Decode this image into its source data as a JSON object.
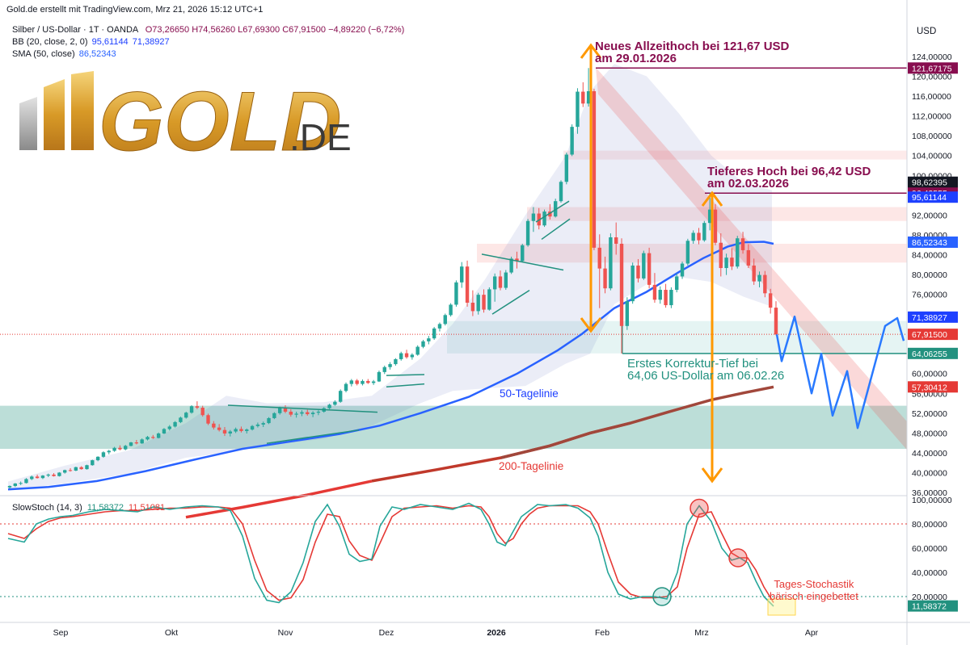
{
  "header": {
    "source_line": "Gold.de erstellt mit TradingView.com, Mrz 21, 2026 15:12 UTC+1",
    "symbol": "Silber / US-Dollar · 1T · OANDA",
    "ohlc": {
      "o": "O73,26650",
      "h": "H74,56260",
      "l": "L67,69300",
      "c": "C67,91500",
      "chg": "−4,89220 (−6,72%)"
    },
    "bb_label": "BB (20, close, 2, 0)",
    "bb_values": [
      "95,61144",
      "71,38927"
    ],
    "sma_label": "SMA (50, close)",
    "sma_value": "86,52343",
    "currency": "USD"
  },
  "logo": {
    "text": "GOLD",
    "suffix": ".DE"
  },
  "colors": {
    "up": "#26a69a",
    "down": "#ef5350",
    "sma50": "#2962ff",
    "sma200": "#e53935",
    "orange": "#ff9800",
    "purple": "#880e4f",
    "teal": "#22917f",
    "forecast": "#2979ff"
  },
  "price_axis": {
    "ticks": [
      "124,00000",
      "120,00000",
      "116,00000",
      "112,00000",
      "108,00000",
      "104,00000",
      "100,00000",
      "96,00000",
      "92,00000",
      "88,00000",
      "84,00000",
      "80,00000",
      "76,00000",
      "72,00000",
      "68,00000",
      "64,00000",
      "60,00000",
      "56,00000",
      "52,00000",
      "48,00000",
      "44,00000",
      "40,00000",
      "36,00000"
    ],
    "badges": [
      {
        "label": "121,67175",
        "value": 121.67,
        "bg": "#880e4f",
        "fg": "#ffffff"
      },
      {
        "label": "98,62395",
        "value": 98.62,
        "bg": "#131722",
        "fg": "#ffffff"
      },
      {
        "label": "96,42555",
        "value": 96.42,
        "bg": "#880e4f",
        "fg": "#ffffff"
      },
      {
        "label": "95,61144",
        "value": 95.61,
        "bg": "#1e40ff",
        "fg": "#ffffff"
      },
      {
        "label": "86,52343",
        "value": 86.52,
        "bg": "#2962ff",
        "fg": "#ffffff"
      },
      {
        "label": "71,38927",
        "value": 71.39,
        "bg": "#1e40ff",
        "fg": "#ffffff"
      },
      {
        "label": "67,91500",
        "value": 67.92,
        "bg": "#e53935",
        "fg": "#ffffff"
      },
      {
        "label": "64,06255",
        "value": 64.06,
        "bg": "#22917f",
        "fg": "#ffffff"
      },
      {
        "label": "57,30412",
        "value": 57.3,
        "bg": "#e53935",
        "fg": "#ffffff"
      }
    ]
  },
  "time_axis": {
    "labels": [
      "Sep",
      "Okt",
      "Nov",
      "Dez",
      "2026",
      "Feb",
      "Mrz",
      "Apr"
    ],
    "bold": "2026"
  },
  "annotations": {
    "ath_line1": "Neues Allzeithoch bei 121,67 USD",
    "ath_line2": "am 29.01.2026",
    "lower_high_line1": "Tieferes Hoch bei 96,42 USD",
    "lower_high_line2": "am 02.03.2026",
    "correction_line1": "Erstes Korrektur-Tief bei",
    "correction_line2": "64,06 US-Dollar am 06.02.26",
    "sma50_label": "50-Tagelinie",
    "sma200_label": "200-Tagelinie",
    "stoch_note_line1": "Tages-Stochastik",
    "stoch_note_line2": "bärisch eingebettet"
  },
  "stoch": {
    "label": "SlowStoch (14, 3)",
    "k_value": "11,58372",
    "d_value": "11,51081",
    "axis_ticks": [
      "100,00000",
      "80,00000",
      "60,00000",
      "40,00000",
      "20,00000"
    ],
    "badge": "11,58372",
    "levels": [
      80,
      20
    ]
  },
  "chart_data": {
    "type": "candlestick",
    "title": "Silber / US-Dollar · 1T · OANDA",
    "ylim": [
      36,
      126
    ],
    "candles": [
      [
        37.0,
        37.4,
        36.8,
        37.3
      ],
      [
        37.3,
        37.9,
        37.1,
        37.8
      ],
      [
        37.8,
        38.2,
        37.5,
        37.9
      ],
      [
        37.9,
        38.9,
        37.8,
        38.7
      ],
      [
        38.7,
        39.4,
        38.5,
        39.2
      ],
      [
        39.2,
        39.6,
        38.8,
        38.9
      ],
      [
        38.9,
        39.5,
        38.7,
        39.4
      ],
      [
        39.4,
        39.8,
        39.1,
        39.6
      ],
      [
        39.6,
        39.9,
        39.2,
        39.3
      ],
      [
        39.3,
        40.1,
        39.2,
        40.0
      ],
      [
        40.0,
        40.6,
        39.8,
        40.5
      ],
      [
        40.5,
        40.9,
        40.2,
        40.4
      ],
      [
        40.4,
        41.2,
        40.3,
        41.1
      ],
      [
        41.1,
        41.3,
        40.6,
        40.7
      ],
      [
        40.7,
        41.6,
        40.6,
        41.5
      ],
      [
        41.5,
        42.6,
        41.4,
        42.5
      ],
      [
        42.5,
        43.3,
        42.3,
        43.2
      ],
      [
        43.2,
        44.3,
        43.0,
        44.1
      ],
      [
        44.1,
        44.6,
        43.7,
        44.4
      ],
      [
        44.4,
        45.2,
        44.2,
        45.0
      ],
      [
        45.0,
        45.5,
        44.5,
        44.7
      ],
      [
        44.7,
        45.6,
        44.5,
        45.4
      ],
      [
        45.4,
        46.2,
        45.3,
        46.1
      ],
      [
        46.1,
        46.6,
        45.7,
        45.9
      ],
      [
        45.9,
        46.9,
        45.8,
        46.7
      ],
      [
        46.7,
        47.4,
        46.5,
        47.2
      ],
      [
        47.2,
        47.6,
        46.8,
        47.0
      ],
      [
        47.0,
        48.1,
        46.9,
        47.9
      ],
      [
        47.9,
        49.0,
        47.8,
        48.8
      ],
      [
        48.8,
        49.6,
        48.5,
        49.3
      ],
      [
        49.3,
        50.4,
        49.1,
        50.2
      ],
      [
        50.2,
        51.3,
        50.0,
        51.1
      ],
      [
        51.1,
        52.3,
        50.9,
        52.1
      ],
      [
        52.1,
        53.6,
        51.9,
        53.4
      ],
      [
        53.4,
        54.4,
        52.8,
        53.1
      ],
      [
        53.1,
        53.5,
        51.3,
        51.6
      ],
      [
        51.6,
        51.9,
        49.6,
        49.9
      ],
      [
        49.9,
        50.4,
        48.7,
        49.1
      ],
      [
        49.1,
        49.8,
        48.3,
        48.6
      ],
      [
        48.6,
        49.2,
        47.4,
        47.9
      ],
      [
        47.9,
        48.6,
        47.3,
        48.3
      ],
      [
        48.3,
        49.1,
        48.0,
        48.8
      ],
      [
        48.8,
        49.3,
        48.1,
        48.4
      ],
      [
        48.4,
        48.9,
        47.9,
        48.7
      ],
      [
        48.7,
        49.6,
        48.5,
        49.4
      ],
      [
        49.4,
        50.1,
        49.1,
        49.7
      ],
      [
        49.7,
        50.3,
        49.2,
        50.0
      ],
      [
        50.0,
        51.2,
        49.8,
        51.0
      ],
      [
        51.0,
        52.2,
        50.8,
        52.0
      ],
      [
        52.0,
        53.3,
        51.7,
        53.1
      ],
      [
        53.1,
        53.6,
        52.0,
        52.3
      ],
      [
        52.3,
        52.8,
        51.3,
        51.7
      ],
      [
        51.7,
        52.3,
        51.1,
        51.9
      ],
      [
        51.9,
        52.6,
        51.4,
        52.2
      ],
      [
        52.2,
        52.7,
        51.5,
        51.8
      ],
      [
        51.8,
        52.4,
        51.2,
        52.1
      ],
      [
        52.1,
        52.6,
        51.6,
        52.3
      ],
      [
        52.3,
        53.2,
        52.1,
        53.0
      ],
      [
        53.0,
        53.9,
        52.8,
        53.7
      ],
      [
        53.7,
        54.6,
        53.5,
        54.3
      ],
      [
        54.3,
        56.8,
        54.1,
        56.5
      ],
      [
        56.5,
        58.2,
        56.2,
        57.9
      ],
      [
        57.9,
        58.9,
        57.4,
        58.6
      ],
      [
        58.6,
        58.9,
        57.6,
        57.9
      ],
      [
        57.9,
        58.8,
        57.6,
        58.5
      ],
      [
        58.5,
        58.9,
        57.9,
        58.1
      ],
      [
        58.1,
        58.7,
        57.7,
        58.4
      ],
      [
        58.4,
        60.6,
        58.3,
        60.3
      ],
      [
        60.3,
        61.6,
        59.9,
        61.3
      ],
      [
        61.3,
        62.3,
        60.8,
        61.9
      ],
      [
        61.9,
        63.1,
        61.6,
        62.9
      ],
      [
        62.9,
        64.4,
        62.6,
        64.1
      ],
      [
        64.1,
        64.8,
        63.0,
        63.3
      ],
      [
        63.3,
        64.1,
        62.8,
        63.8
      ],
      [
        63.8,
        65.7,
        63.6,
        65.4
      ],
      [
        65.4,
        66.8,
        65.1,
        66.5
      ],
      [
        66.5,
        67.6,
        65.9,
        67.1
      ],
      [
        67.1,
        69.4,
        66.8,
        69.1
      ],
      [
        69.1,
        70.3,
        68.5,
        70.0
      ],
      [
        70.0,
        72.1,
        69.7,
        71.8
      ],
      [
        71.8,
        74.2,
        71.5,
        73.9
      ],
      [
        73.9,
        78.8,
        73.5,
        78.4
      ],
      [
        78.4,
        82.5,
        77.3,
        81.6
      ],
      [
        81.6,
        82.8,
        73.5,
        74.3
      ],
      [
        74.3,
        76.8,
        71.6,
        72.6
      ],
      [
        72.6,
        76.3,
        71.9,
        75.9
      ],
      [
        75.9,
        77.0,
        72.3,
        72.9
      ],
      [
        72.9,
        77.4,
        72.7,
        77.0
      ],
      [
        77.0,
        80.2,
        74.5,
        79.6
      ],
      [
        79.6,
        80.8,
        76.8,
        77.3
      ],
      [
        77.3,
        80.9,
        76.9,
        80.4
      ],
      [
        80.4,
        83.6,
        80.1,
        83.2
      ],
      [
        83.2,
        84.6,
        81.2,
        82.7
      ],
      [
        82.7,
        86.2,
        82.5,
        85.9
      ],
      [
        85.9,
        91.2,
        85.6,
        90.8
      ],
      [
        90.8,
        93.6,
        88.6,
        92.3
      ],
      [
        92.3,
        93.4,
        89.1,
        89.9
      ],
      [
        89.9,
        93.1,
        89.6,
        92.7
      ],
      [
        92.7,
        94.2,
        91.1,
        91.7
      ],
      [
        91.7,
        95.3,
        91.5,
        94.8
      ],
      [
        94.8,
        99.0,
        94.5,
        98.7
      ],
      [
        98.7,
        104.6,
        98.2,
        104.2
      ],
      [
        104.2,
        110.3,
        103.9,
        109.8
      ],
      [
        109.8,
        117.6,
        108.4,
        116.9
      ],
      [
        116.9,
        118.8,
        113.8,
        114.5
      ],
      [
        114.5,
        121.67,
        113.9,
        117.0
      ],
      [
        117.0,
        117.5,
        84.9,
        85.4
      ],
      [
        85.4,
        88.1,
        73.2,
        81.2
      ],
      [
        81.2,
        83.6,
        76.2,
        77.2
      ],
      [
        77.2,
        88.3,
        76.8,
        87.5
      ],
      [
        87.5,
        90.5,
        84.0,
        86.2
      ],
      [
        86.2,
        87.3,
        64.06,
        69.6
      ],
      [
        69.6,
        75.4,
        68.8,
        74.6
      ],
      [
        74.6,
        82.4,
        74.1,
        81.8
      ],
      [
        81.8,
        83.1,
        78.4,
        79.2
      ],
      [
        79.2,
        84.8,
        78.9,
        84.3
      ],
      [
        84.3,
        85.4,
        77.2,
        77.9
      ],
      [
        77.9,
        80.3,
        74.3,
        74.9
      ],
      [
        74.9,
        77.6,
        74.1,
        76.9
      ],
      [
        76.9,
        78.1,
        73.3,
        73.8
      ],
      [
        73.8,
        77.4,
        73.2,
        76.9
      ],
      [
        76.9,
        80.2,
        76.4,
        79.6
      ],
      [
        79.6,
        82.6,
        79.1,
        82.2
      ],
      [
        82.2,
        87.2,
        81.8,
        86.8
      ],
      [
        86.8,
        88.9,
        86.2,
        88.4
      ],
      [
        88.4,
        89.4,
        86.1,
        86.9
      ],
      [
        86.9,
        90.8,
        86.6,
        90.4
      ],
      [
        90.4,
        96.42,
        88.9,
        93.1
      ],
      [
        93.1,
        94.2,
        85.9,
        86.4
      ],
      [
        86.4,
        88.3,
        79.6,
        81.3
      ],
      [
        81.3,
        84.2,
        79.9,
        83.4
      ],
      [
        83.4,
        85.3,
        80.9,
        81.6
      ],
      [
        81.6,
        87.8,
        81.2,
        87.3
      ],
      [
        87.3,
        88.6,
        84.2,
        84.9
      ],
      [
        84.9,
        86.1,
        81.3,
        81.8
      ],
      [
        81.8,
        83.2,
        77.9,
        78.6
      ],
      [
        78.6,
        80.6,
        77.4,
        79.9
      ],
      [
        79.9,
        80.7,
        75.4,
        76.2
      ],
      [
        76.2,
        77.1,
        72.1,
        73.3
      ],
      [
        73.3,
        74.6,
        67.7,
        67.9
      ]
    ],
    "forecast_path": [
      [
        67.9,
        0
      ],
      [
        64.2,
        2
      ],
      [
        70.2,
        4
      ],
      [
        58.9,
        7
      ],
      [
        65.4,
        9
      ],
      [
        52.3,
        11
      ],
      [
        61.3,
        13
      ],
      [
        48.8,
        15
      ],
      [
        68.2,
        20
      ],
      [
        70.6,
        22
      ],
      [
        64.2,
        23
      ]
    ],
    "series_labels": [
      "50-Tagelinie",
      "200-Tagelinie"
    ]
  }
}
